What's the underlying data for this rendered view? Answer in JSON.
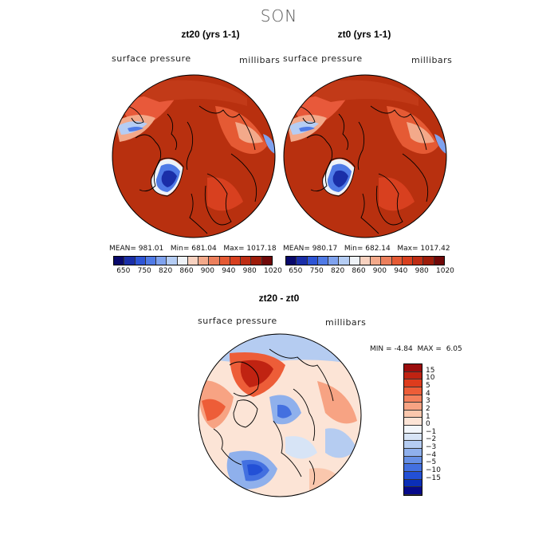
{
  "main_title": "SON",
  "panels": [
    {
      "title": "zt20 (yrs 1-1)",
      "variable": "surface pressure",
      "units": "millibars",
      "stats": {
        "mean_label": "MEAN=",
        "mean": "981.01",
        "min_label": "Min=",
        "min": "681.04",
        "max_label": "Max=",
        "max": "1017.18"
      }
    },
    {
      "title": "zt0 (yrs 1-1)",
      "variable": "surface pressure",
      "units": "millibars",
      "stats": {
        "mean_label": "MEAN=",
        "mean": "980.17",
        "min_label": "Min=",
        "min": "682.14",
        "max_label": "Max=",
        "max": "1017.42"
      }
    }
  ],
  "pressure_colorbar": {
    "colors": [
      "#08086b",
      "#1a2ea8",
      "#2e55d6",
      "#4f7ae6",
      "#7fa2ee",
      "#b5cdf4",
      "#eef2f7",
      "#f8d2c0",
      "#f3a98a",
      "#ec7f5c",
      "#e55a34",
      "#d8401f",
      "#be2d14",
      "#9e1c0a",
      "#700808"
    ],
    "tick_labels": [
      "650",
      "750",
      "820",
      "860",
      "900",
      "940",
      "980",
      "1020"
    ]
  },
  "diff_panel": {
    "title": "zt20 - zt0",
    "variable": "surface pressure",
    "units": "millibars",
    "min_label": "MIN =",
    "min": "-4.84",
    "max_label": "MAX =",
    "max": "6.05"
  },
  "diff_colorbar": {
    "colors": [
      "#9b0d0d",
      "#c02312",
      "#de3c1d",
      "#ed5d38",
      "#f4805c",
      "#f7a383",
      "#fac7ad",
      "#fce4d6",
      "#f2f6fb",
      "#d7e4f6",
      "#b5ccf1",
      "#8fb0ec",
      "#6790e6",
      "#4370e0",
      "#2350d6",
      "#0b2fb8",
      "#060a8a"
    ],
    "labels": [
      "15",
      "10",
      "5",
      "4",
      "3",
      "2",
      "1",
      "0",
      "−1",
      "−2",
      "−3",
      "−4",
      "−5",
      "−10",
      "−15"
    ]
  }
}
